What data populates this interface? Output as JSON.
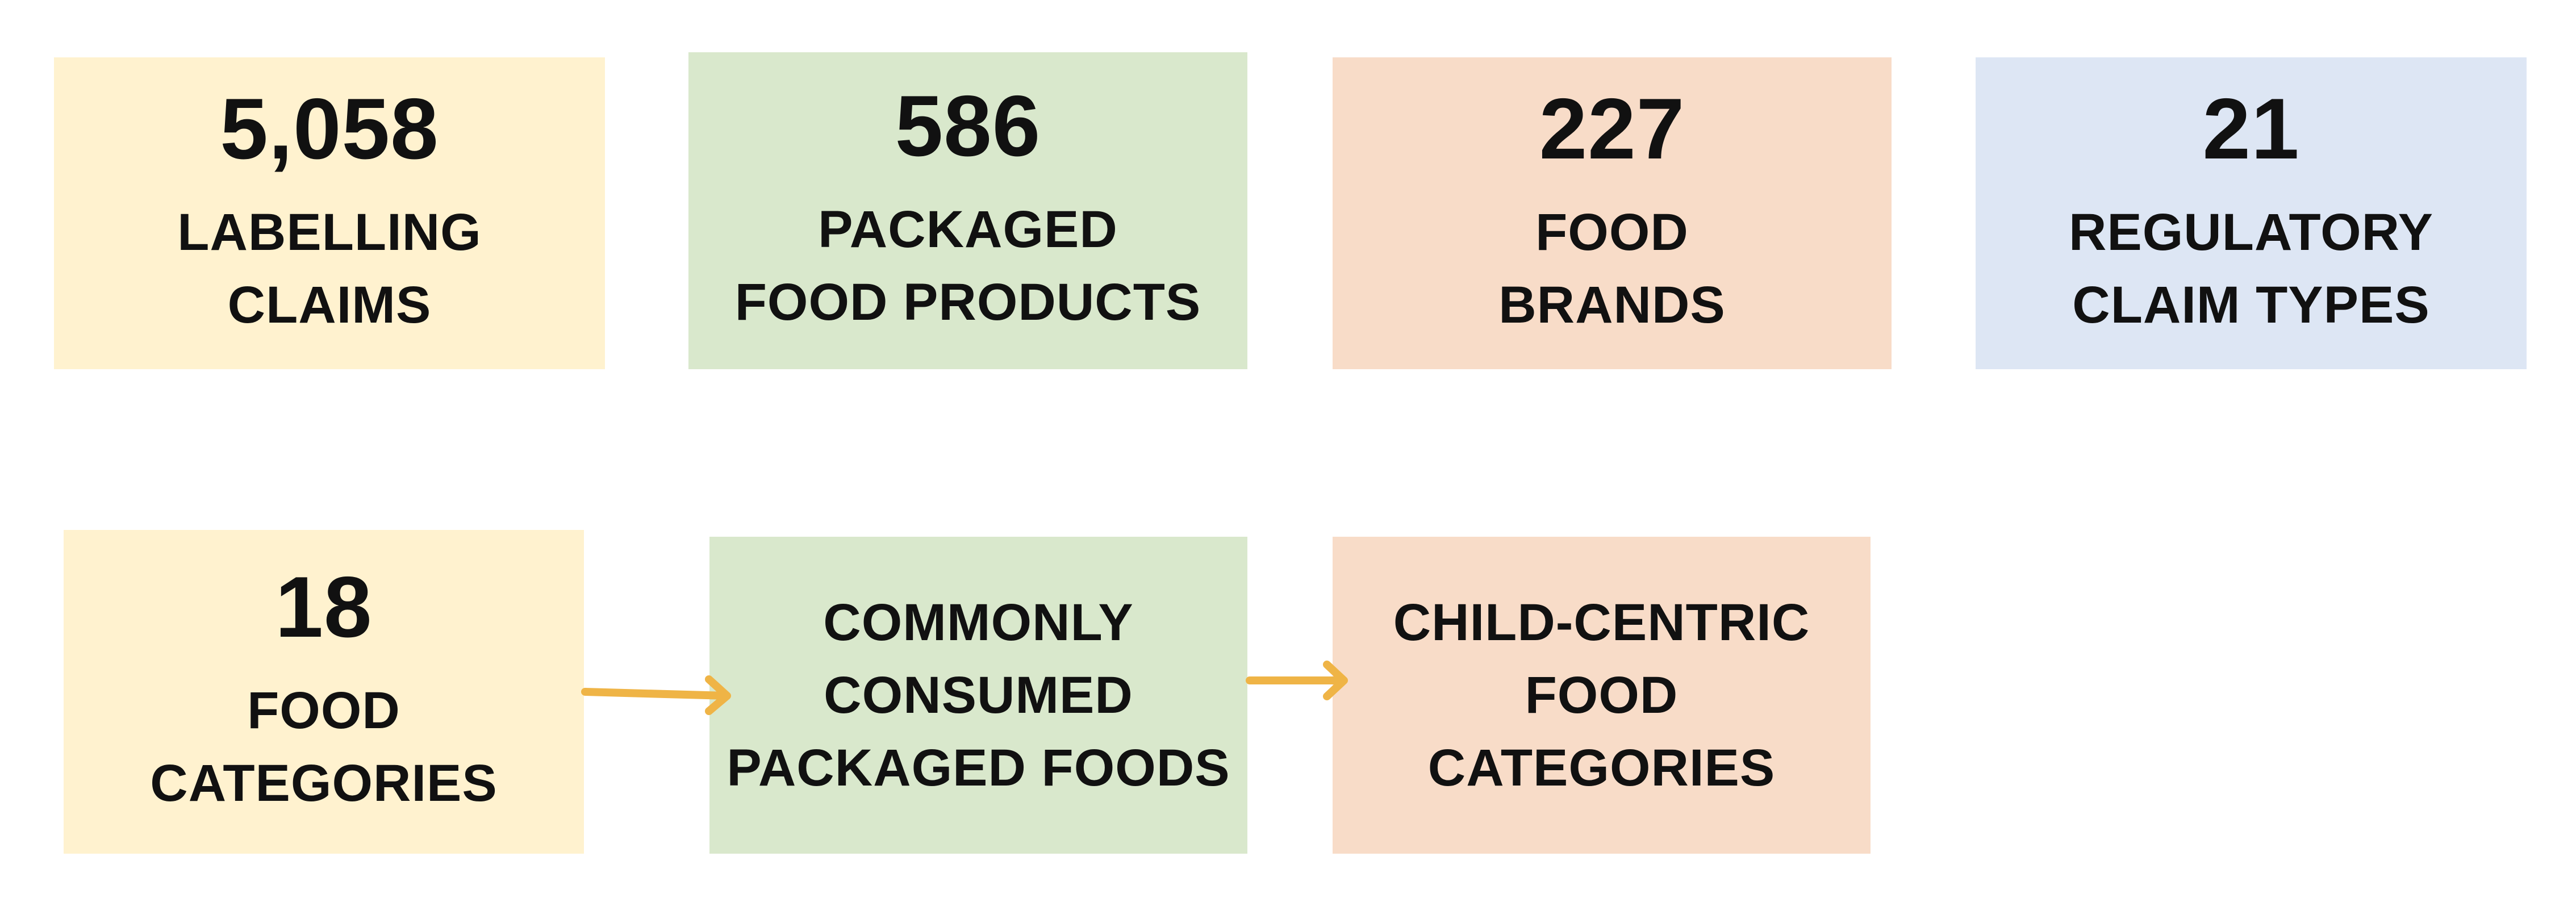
{
  "colors": {
    "yellow": "#fff2cf",
    "green": "#d9e8cc",
    "peach": "#f8dcc8",
    "blue": "#dde6f4",
    "arrow": "#efb446",
    "text": "#111111"
  },
  "stats": [
    {
      "value": "5,058",
      "line1": "LABELLING",
      "line2": "CLAIMS"
    },
    {
      "value": "586",
      "line1": "PACKAGED",
      "line2": "FOOD PRODUCTS"
    },
    {
      "value": "227",
      "line1": "FOOD",
      "line2": "BRANDS"
    },
    {
      "value": "21",
      "line1": "REGULATORY",
      "line2": "CLAIM TYPES"
    }
  ],
  "flow": {
    "categories": {
      "value": "18",
      "line1": "FOOD",
      "line2": "CATEGORIES"
    },
    "consumed": {
      "line1": "COMMONLY",
      "line2": "CONSUMED",
      "line3": "PACKAGED FOODS"
    },
    "child": {
      "line1": "CHILD-CENTRIC",
      "line2": "FOOD",
      "line3": "CATEGORIES"
    }
  }
}
